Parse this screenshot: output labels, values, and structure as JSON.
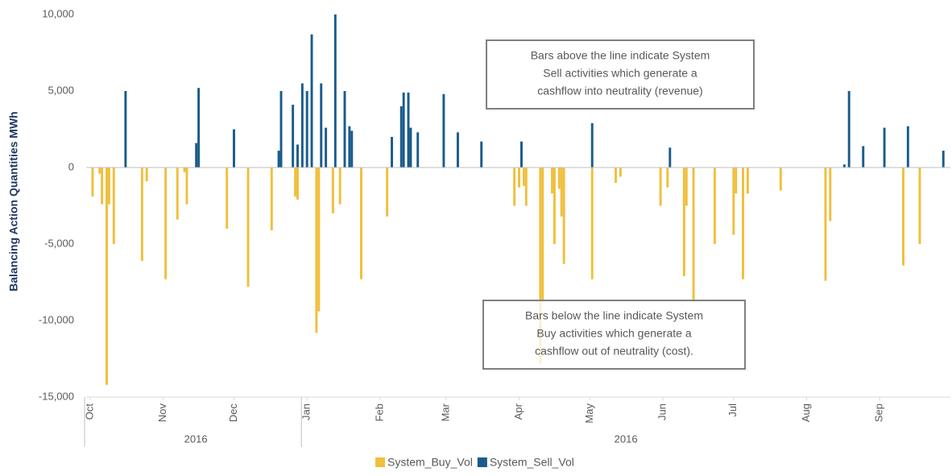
{
  "chart_data": {
    "type": "bar",
    "ylabel": "Balancing Action Quantities MWh",
    "xlim": [
      0,
      365
    ],
    "xticks": [
      {
        "value": 0,
        "label": "Oct"
      },
      {
        "value": 31,
        "label": "Nov"
      },
      {
        "value": 61,
        "label": "Dec"
      },
      {
        "value": 92,
        "label": "Jan"
      },
      {
        "value": 123,
        "label": "Feb"
      },
      {
        "value": 151,
        "label": "Mar"
      },
      {
        "value": 182,
        "label": "Apr"
      },
      {
        "value": 212,
        "label": "May"
      },
      {
        "value": 243,
        "label": "Jun"
      },
      {
        "value": 273,
        "label": "Jul"
      },
      {
        "value": 304,
        "label": "Aug"
      },
      {
        "value": 335,
        "label": "Sep"
      }
    ],
    "x_groups": [
      {
        "label": "2016",
        "range": [
          0,
          92
        ]
      },
      {
        "label": "2016",
        "range": [
          92,
          365
        ]
      }
    ],
    "ylim": [
      -15000,
      10000
    ],
    "yticks": [
      {
        "value": 10000,
        "label": "10,000"
      },
      {
        "value": 5000,
        "label": "5,000"
      },
      0,
      {
        "value": -5000,
        "label": "-5,000"
      },
      {
        "value": -10000,
        "label": "-10,000"
      },
      {
        "value": -15000,
        "label": "-15,000"
      }
    ],
    "legend": "bottom",
    "series": [
      {
        "name": "System_Buy_Vol",
        "color": "#f0bf3c",
        "x": [
          1,
          4,
          5,
          7,
          8,
          10,
          22,
          24,
          32,
          37,
          40,
          41,
          58,
          67,
          77,
          87,
          88,
          96,
          97,
          103,
          106,
          115,
          126,
          180,
          182,
          184,
          185,
          191,
          192,
          196,
          197,
          199,
          200,
          201,
          213,
          223,
          225,
          242,
          245,
          252,
          253,
          256,
          265,
          273,
          274,
          277,
          279,
          293,
          312,
          314,
          345,
          352
        ],
        "values": [
          -1900,
          -400,
          -2400,
          -14200,
          -2400,
          -5000,
          -6100,
          -900,
          -7300,
          -3400,
          -300,
          -2400,
          -4000,
          -7800,
          -4100,
          -1900,
          -2100,
          -10800,
          -9400,
          -3000,
          -2400,
          -7300,
          -3200,
          -2500,
          -1300,
          -1200,
          -2500,
          -12800,
          -8800,
          -1700,
          -5000,
          -1400,
          -3200,
          -6300,
          -7300,
          -1000,
          -600,
          -2500,
          -1300,
          -7100,
          -2500,
          -8800,
          -5000,
          -4400,
          -1700,
          -7300,
          -1700,
          -1500,
          -7400,
          -3500,
          -6400,
          -5000
        ]
      },
      {
        "name": "System_Sell_Vol",
        "color": "#1a5b8c",
        "x": [
          15,
          45,
          46,
          61,
          80,
          81,
          86,
          88,
          90,
          92,
          94,
          98,
          100,
          104,
          108,
          110,
          111,
          128,
          132,
          133,
          135,
          136,
          139,
          150,
          156,
          166,
          183,
          213,
          246,
          320,
          322,
          328,
          337,
          347,
          362
        ],
        "values": [
          5000,
          1600,
          5200,
          2500,
          1100,
          5000,
          4100,
          1500,
          5500,
          5000,
          8700,
          5500,
          2600,
          10000,
          5000,
          2700,
          2400,
          2000,
          4000,
          4900,
          4900,
          2600,
          2300,
          4800,
          2300,
          1700,
          1700,
          2900,
          1300,
          200,
          5000,
          1400,
          2600,
          2700,
          1100
        ]
      }
    ],
    "annotations": [
      {
        "lines": [
          "Bars above the line indicate System",
          "Sell activities which generate a",
          "cashflow into neutrality (revenue)"
        ]
      },
      {
        "lines": [
          "Bars below the line indicate System",
          "Buy activities which generate a",
          "cashflow out of neutrality (cost)."
        ]
      }
    ]
  }
}
